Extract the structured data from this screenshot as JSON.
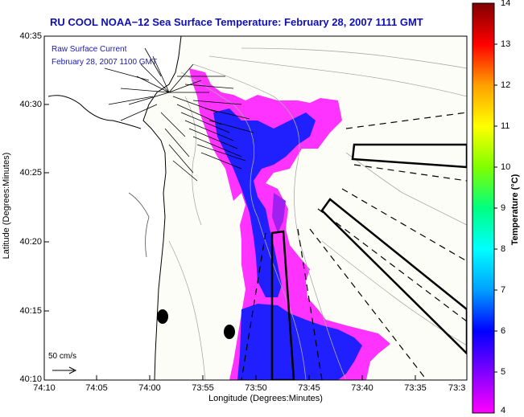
{
  "title": "RU COOL  NOAA−12  Sea Surface Temperature:  February 28, 2007 1111 GMT",
  "legend": {
    "current_label": "Raw Surface Current",
    "current_time": "February 28, 2007 1100 GMT",
    "scale_label": "50 cm/s"
  },
  "axes": {
    "y_title": "Latitude (Degrees:Minutes)",
    "x_title": "Longitude (Degrees:Minutes)",
    "y_ticks": [
      "40:35",
      "40:30",
      "40:25",
      "40:20",
      "40:15",
      "40:10"
    ],
    "x_ticks": [
      "74:10",
      "74:05",
      "74:00",
      "73:55",
      "73:50",
      "73:45",
      "73:40",
      "73:35",
      "73:3"
    ]
  },
  "colorbar": {
    "title": "Temperature (°C)",
    "ticks": [
      "14",
      "13",
      "12",
      "11",
      "10",
      "9",
      "8",
      "7",
      "6",
      "5",
      "4"
    ],
    "colors": [
      "#ff00ff",
      "#8000ff",
      "#0000ff",
      "#00a0ff",
      "#00ffff",
      "#00ff80",
      "#80ff00",
      "#ffff00",
      "#ffa000",
      "#ff0000",
      "#800000"
    ]
  },
  "colors": {
    "title": "#1010b0",
    "sst_magenta": "#ff33ff",
    "sst_blue": "#2020ff",
    "land": "#ffffff",
    "ocean_background": "#fdfdf8"
  }
}
